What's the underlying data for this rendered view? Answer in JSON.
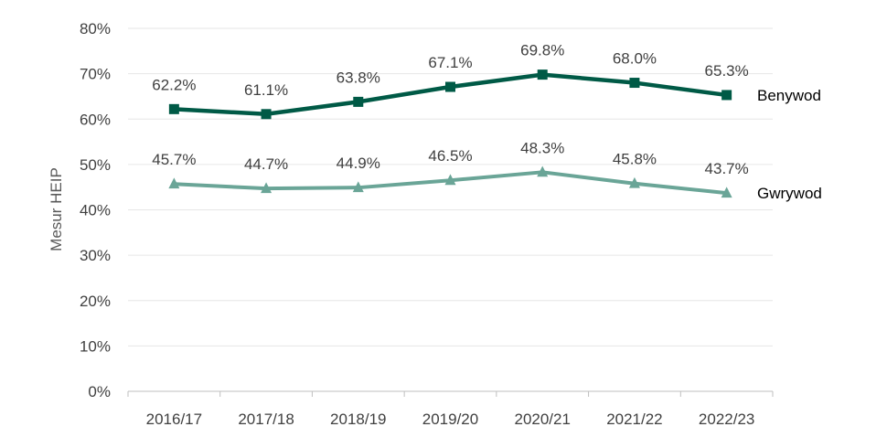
{
  "chart_data": {
    "type": "line",
    "title": "",
    "xlabel": "",
    "ylabel": "Mesur HEIP",
    "categories": [
      "2016/17",
      "2017/18",
      "2018/19",
      "2019/20",
      "2020/21",
      "2021/22",
      "2022/23"
    ],
    "ylim": [
      0,
      80
    ],
    "yticks": [
      0,
      10,
      20,
      30,
      40,
      50,
      60,
      70,
      80
    ],
    "ytick_labels": [
      "0%",
      "10%",
      "20%",
      "30%",
      "40%",
      "50%",
      "60%",
      "70%",
      "80%"
    ],
    "grid": true,
    "legend": "series labels at right end of lines",
    "series": [
      {
        "name": "Benywod",
        "values": [
          62.2,
          61.1,
          63.8,
          67.1,
          69.8,
          68.0,
          65.3
        ],
        "labels": [
          "62.2%",
          "61.1%",
          "63.8%",
          "67.1%",
          "69.8%",
          "68.0%",
          "65.3%"
        ],
        "color": "#005A46",
        "marker": "square"
      },
      {
        "name": "Gwrywod",
        "values": [
          45.7,
          44.7,
          44.9,
          46.5,
          48.3,
          45.8,
          43.7
        ],
        "labels": [
          "45.7%",
          "44.7%",
          "44.9%",
          "46.5%",
          "48.3%",
          "45.8%",
          "43.7%"
        ],
        "color": "#6AA597",
        "marker": "triangle"
      }
    ]
  }
}
